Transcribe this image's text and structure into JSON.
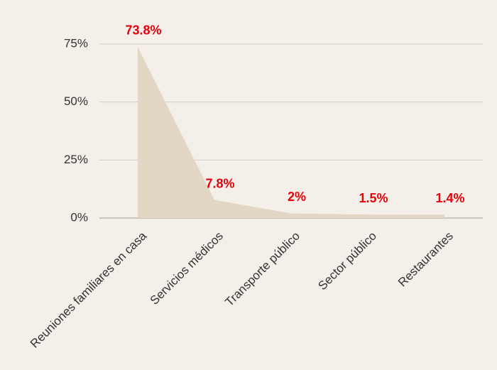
{
  "chart_data": {
    "type": "area",
    "categories": [
      "Reuniones familiares en casa",
      "Servicios médicos",
      "Transporte público",
      "Sector público",
      "Restaurantes"
    ],
    "values": [
      73.8,
      7.8,
      2,
      1.5,
      1.4
    ],
    "value_labels": [
      "73.8%",
      "7.8%",
      "2%",
      "1.5%",
      "1.4%"
    ],
    "color": "#e2d6c5",
    "label_color": "#e8000b",
    "ylim": [
      0,
      75
    ],
    "yticks": [
      {
        "value": 0,
        "label": "0%"
      },
      {
        "value": 25,
        "label": "25%"
      },
      {
        "value": 50,
        "label": "50%"
      },
      {
        "value": 75,
        "label": "75%"
      }
    ],
    "grid": true
  }
}
